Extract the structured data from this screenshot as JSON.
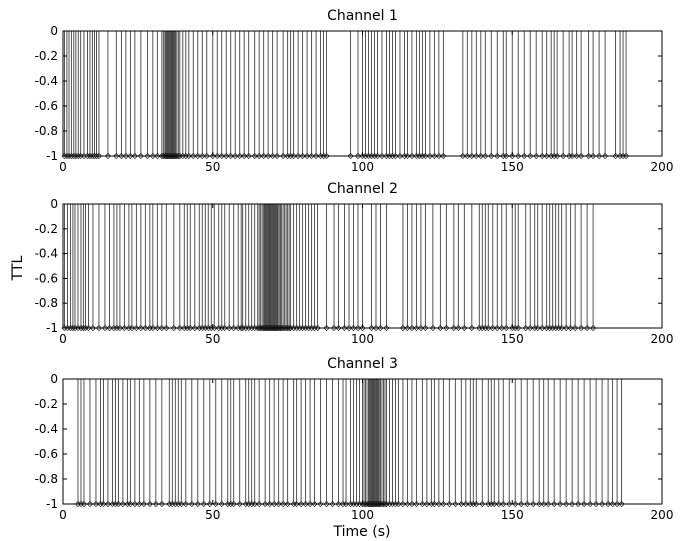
{
  "figure": {
    "ylabel": "TTL",
    "xlabel": "Time (s)"
  },
  "chart_data": [
    {
      "type": "line",
      "title": "Channel 1",
      "xlim": [
        0,
        200
      ],
      "ylim": [
        -1,
        0
      ],
      "xticks": [
        0,
        50,
        100,
        150,
        200
      ],
      "yticks": [
        0,
        -0.2,
        -0.4,
        -0.6,
        -0.8,
        -1
      ],
      "yticklabels": [
        "0",
        "-0.2",
        "-0.4",
        "-0.6",
        "-0.8",
        "-1"
      ],
      "grid": false,
      "series": [
        {
          "style": "stem",
          "baseline": -1,
          "top": 0,
          "color": "#000000",
          "marker": "diamond",
          "x": [
            0.5,
            1.3,
            2.0,
            2.8,
            3.6,
            4.3,
            5.1,
            5.9,
            7.0,
            8.2,
            9.0,
            9.8,
            10.5,
            11.2,
            12.0,
            15.0,
            17.8,
            19.5,
            21.0,
            22.5,
            24.0,
            26.0,
            28.2,
            30.0,
            31.5,
            33.0,
            33.5,
            34.0,
            34.3,
            34.6,
            34.9,
            35.2,
            35.5,
            35.8,
            36.1,
            36.4,
            36.7,
            37.0,
            37.3,
            37.6,
            38.0,
            38.5,
            39.0,
            40.0,
            41.0,
            42.0,
            43.5,
            45.0,
            46.5,
            48.0,
            50.0,
            51.5,
            53.0,
            54.5,
            56.0,
            57.5,
            59.0,
            60.5,
            62.0,
            64.0,
            65.5,
            67.0,
            68.5,
            70.0,
            71.5,
            73.5,
            75.0,
            76.0,
            77.0,
            78.5,
            80.0,
            81.5,
            83.0,
            84.5,
            86.0,
            87.0,
            88.0,
            96.0,
            98.5,
            100.0,
            101.0,
            102.0,
            103.0,
            104.0,
            105.0,
            106.5,
            108.0,
            109.0,
            110.0,
            111.0,
            112.5,
            114.0,
            115.0,
            116.5,
            118.0,
            119.0,
            120.0,
            121.0,
            122.5,
            124.0,
            125.5,
            127.0,
            133.5,
            135.0,
            136.5,
            138.0,
            139.5,
            141.0,
            143.0,
            145.0,
            147.0,
            148.0,
            150.0,
            152.0,
            154.0,
            156.0,
            158.0,
            160.0,
            161.5,
            163.0,
            164.0,
            165.0,
            167.0,
            169.0,
            170.0,
            171.5,
            173.0,
            175.5,
            177.0,
            179.0,
            181.0,
            184.5,
            186.0,
            187.0,
            188.0
          ]
        }
      ]
    },
    {
      "type": "line",
      "title": "Channel 2",
      "xlim": [
        0,
        200
      ],
      "ylim": [
        -1,
        0
      ],
      "xticks": [
        0,
        50,
        100,
        150,
        200
      ],
      "yticks": [
        0,
        -0.2,
        -0.4,
        -0.6,
        -0.8,
        -1
      ],
      "yticklabels": [
        "0",
        "-0.2",
        "-0.4",
        "-0.6",
        "-0.8",
        "-1"
      ],
      "grid": false,
      "series": [
        {
          "style": "stem",
          "baseline": -1,
          "top": 0,
          "color": "#000000",
          "marker": "diamond",
          "x": [
            0.5,
            1.5,
            2.5,
            3.3,
            4.0,
            5.0,
            6.0,
            6.8,
            7.5,
            8.5,
            10.0,
            12.0,
            14.0,
            15.5,
            17.0,
            18.0,
            19.0,
            20.5,
            22.0,
            23.0,
            24.5,
            26.0,
            27.5,
            29.0,
            30.0,
            31.5,
            33.0,
            34.5,
            37.0,
            39.0,
            40.5,
            41.5,
            42.5,
            44.0,
            45.5,
            46.5,
            47.5,
            48.5,
            49.5,
            50.5,
            52.0,
            53.0,
            54.0,
            55.5,
            57.0,
            58.5,
            59.5,
            60.0,
            61.0,
            62.0,
            63.0,
            64.0,
            65.0,
            65.5,
            66.0,
            66.5,
            67.0,
            67.3,
            67.6,
            67.9,
            68.2,
            68.5,
            68.8,
            69.1,
            69.4,
            69.7,
            70.0,
            70.3,
            70.6,
            70.9,
            71.2,
            71.5,
            71.8,
            72.2,
            72.6,
            73.0,
            73.5,
            74.0,
            74.5,
            75.0,
            75.5,
            76.0,
            77.0,
            78.0,
            79.0,
            80.0,
            81.0,
            82.0,
            83.0,
            84.0,
            85.0,
            88.0,
            90.5,
            92.0,
            94.0,
            95.5,
            97.0,
            98.5,
            100.0,
            103.0,
            104.5,
            106.0,
            108.0,
            113.5,
            115.0,
            116.5,
            118.0,
            119.5,
            121.0,
            123.5,
            126.0,
            128.0,
            130.5,
            132.0,
            134.0,
            136.5,
            139.0,
            140.0,
            141.0,
            142.0,
            143.5,
            145.0,
            146.5,
            148.0,
            150.0,
            151.0,
            152.0,
            154.5,
            156.0,
            157.5,
            158.5,
            160.0,
            161.5,
            162.5,
            163.5,
            164.5,
            165.5,
            166.5,
            168.0,
            169.5,
            171.0,
            173.0,
            175.0,
            177.0
          ]
        }
      ]
    },
    {
      "type": "line",
      "title": "Channel 3",
      "xlim": [
        0,
        200
      ],
      "ylim": [
        -1,
        0
      ],
      "xticks": [
        0,
        50,
        100,
        150,
        200
      ],
      "yticks": [
        0,
        -0.2,
        -0.4,
        -0.6,
        -0.8,
        -1
      ],
      "yticklabels": [
        "0",
        "-0.2",
        "-0.4",
        "-0.6",
        "-0.8",
        "-1"
      ],
      "grid": false,
      "series": [
        {
          "style": "stem",
          "baseline": -1,
          "top": 0,
          "color": "#000000",
          "marker": "diamond",
          "x": [
            5.0,
            6.0,
            7.0,
            9.0,
            11.0,
            12.5,
            13.5,
            15.0,
            16.5,
            17.5,
            18.5,
            20.0,
            21.5,
            22.5,
            24.0,
            25.5,
            27.0,
            29.0,
            31.0,
            33.0,
            35.5,
            36.5,
            37.5,
            38.5,
            39.5,
            41.0,
            43.0,
            45.0,
            47.0,
            49.0,
            51.0,
            53.0,
            55.0,
            56.0,
            57.0,
            59.0,
            61.0,
            62.0,
            63.0,
            64.0,
            65.5,
            67.5,
            69.0,
            70.5,
            72.0,
            73.5,
            75.0,
            77.0,
            78.0,
            79.5,
            81.0,
            82.5,
            84.0,
            86.0,
            88.0,
            90.0,
            92.0,
            93.5,
            94.5,
            96.0,
            97.0,
            98.0,
            99.0,
            100.0,
            100.5,
            101.0,
            101.5,
            102.0,
            102.3,
            102.6,
            102.9,
            103.2,
            103.5,
            103.8,
            104.1,
            104.4,
            104.7,
            105.0,
            105.3,
            105.6,
            106.0,
            106.5,
            107.0,
            107.5,
            108.0,
            109.0,
            110.0,
            111.0,
            112.0,
            113.5,
            115.0,
            116.5,
            118.0,
            120.0,
            121.5,
            123.0,
            124.0,
            125.5,
            127.0,
            129.0,
            131.0,
            133.0,
            134.5,
            136.0,
            137.0,
            138.0,
            140.0,
            142.0,
            143.0,
            144.0,
            145.5,
            147.0,
            149.0,
            151.0,
            153.0,
            155.0,
            157.0,
            159.0,
            160.5,
            162.0,
            164.0,
            166.0,
            168.0,
            170.0,
            172.0,
            174.0,
            176.0,
            178.0,
            180.0,
            182.0,
            183.5,
            185.0,
            186.5
          ]
        }
      ]
    }
  ]
}
